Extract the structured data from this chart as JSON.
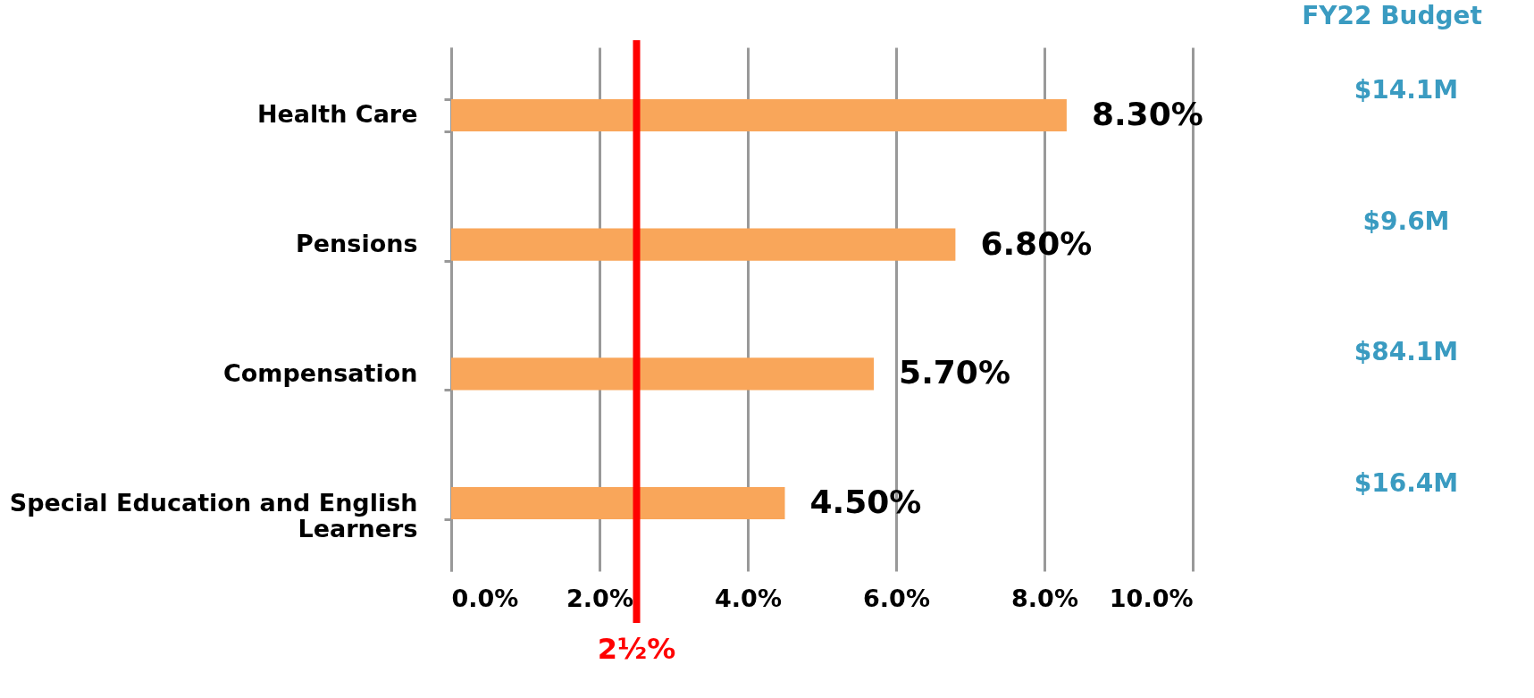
{
  "chart_data": {
    "type": "bar",
    "orientation": "horizontal",
    "categories": [
      "Health Care",
      "Pensions",
      "Compensation",
      "Special Education and English Learners"
    ],
    "values": [
      8.3,
      6.8,
      5.7,
      4.5
    ],
    "value_labels": [
      "8.30%",
      "6.80%",
      "5.70%",
      "4.50%"
    ],
    "color": "#f9a65a",
    "xlim": [
      0,
      10
    ],
    "xticks": [
      {
        "value": 0,
        "label": "0.0%"
      },
      {
        "value": 2,
        "label": "2.0%"
      },
      {
        "value": 4,
        "label": "4.0%"
      },
      {
        "value": 6,
        "label": "6.0%"
      },
      {
        "value": 8,
        "label": "8.0%"
      },
      {
        "value": 10,
        "label": "10.0%"
      }
    ],
    "grid": "x",
    "ref_lines": [
      {
        "axis": "x",
        "value": 2.5,
        "label": "2½%",
        "color": "#ff0000"
      }
    ],
    "annotations": [
      "FY22 Budget",
      "$14.1M",
      "$9.6M",
      "$84.1M",
      "$16.4M"
    ]
  }
}
